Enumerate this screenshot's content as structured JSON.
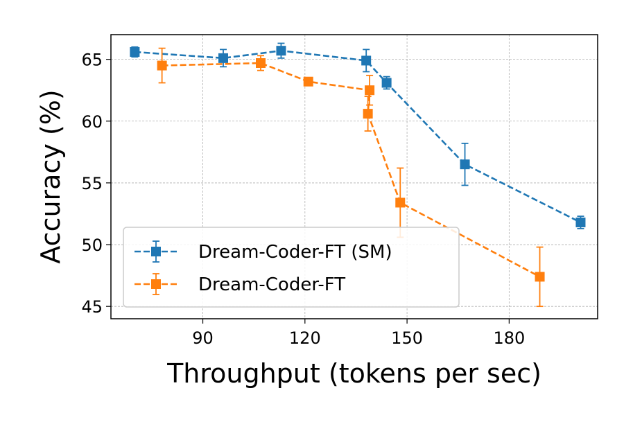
{
  "chart_data": {
    "type": "line",
    "title": "",
    "xlabel": "Throughput (tokens per sec)",
    "ylabel": "Accuracy (%)",
    "xlim": [
      63,
      206
    ],
    "ylim": [
      44,
      67
    ],
    "xticks": [
      90,
      120,
      150,
      180
    ],
    "yticks": [
      45,
      50,
      55,
      60,
      65
    ],
    "grid": true,
    "legend_position": "lower-left",
    "series": [
      {
        "name": "Dream-Coder-FT (SM)",
        "color": "#1f77b4",
        "marker": "square",
        "linestyle": "dashed",
        "x": [
          70,
          96,
          113,
          138,
          144,
          167,
          201
        ],
        "y": [
          65.6,
          65.1,
          65.7,
          64.9,
          63.1,
          56.5,
          51.8
        ],
        "err": [
          0.4,
          0.7,
          0.6,
          0.9,
          0.5,
          1.7,
          0.5
        ]
      },
      {
        "name": "Dream-Coder-FT",
        "color": "#ff7f0e",
        "marker": "square",
        "linestyle": "dashed",
        "x": [
          78,
          107,
          121,
          139,
          138.5,
          148,
          189
        ],
        "y": [
          64.5,
          64.7,
          63.2,
          62.5,
          60.6,
          53.4,
          47.4
        ],
        "err": [
          1.4,
          0.6,
          0.0,
          1.2,
          1.4,
          2.8,
          2.4
        ]
      }
    ]
  }
}
